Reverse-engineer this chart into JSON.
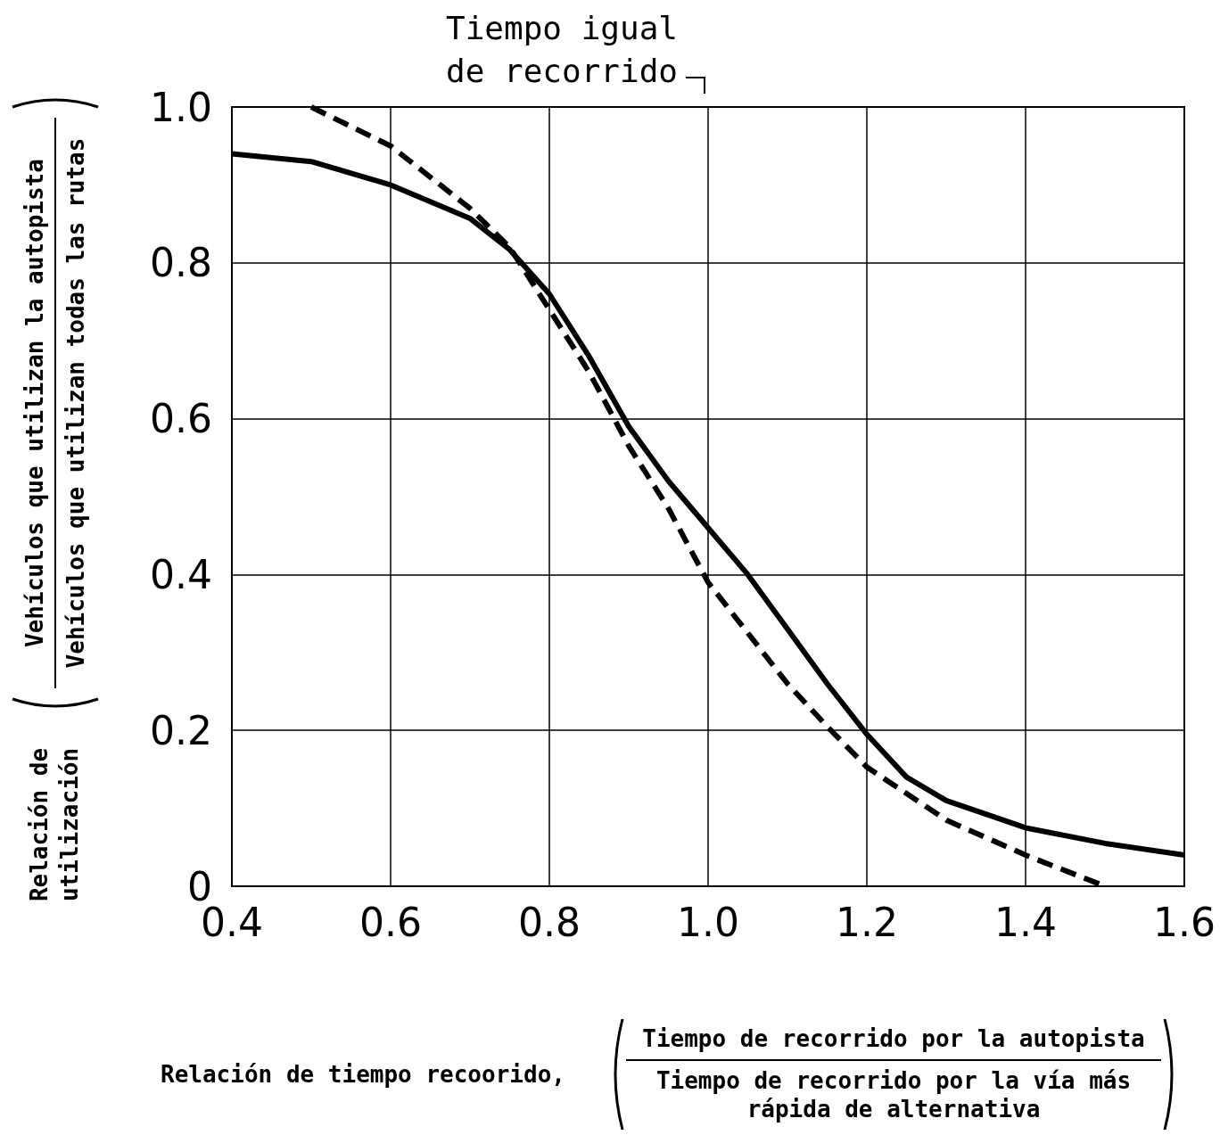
{
  "chart_data": {
    "type": "line",
    "ylabel": "Relación de utilización",
    "annotations": [
      "Tiempo igual de recorrido",
      "Vehículos que utilizan la autopista",
      "Vehículos que utilizan todas las rutas",
      "Relación de tiempo recoorido,",
      "Tiempo de recorrido por la autopista",
      "Tiempo de recorrido por la vía más rápida de alternativa"
    ],
    "series": [
      {
        "color": "#000000",
        "line_style": "solid",
        "x": [
          0.4,
          0.5,
          0.6,
          0.7,
          0.75,
          0.8,
          0.85,
          0.9,
          0.95,
          1.0,
          1.05,
          1.1,
          1.15,
          1.2,
          1.25,
          1.3,
          1.4,
          1.5,
          1.6
        ],
        "values": [
          0.94,
          0.93,
          0.9,
          0.857,
          0.817,
          0.76,
          0.68,
          0.59,
          0.52,
          0.46,
          0.4,
          0.33,
          0.26,
          0.195,
          0.14,
          0.11,
          0.075,
          0.055,
          0.04
        ]
      },
      {
        "color": "#000000",
        "line_style": "dashed",
        "x": [
          0.5,
          0.6,
          0.7,
          0.75,
          0.8,
          0.85,
          0.9,
          0.95,
          1.0,
          1.05,
          1.1,
          1.15,
          1.2,
          1.3,
          1.4,
          1.5
        ],
        "values": [
          1.0,
          0.95,
          0.87,
          0.82,
          0.74,
          0.66,
          0.565,
          0.485,
          0.39,
          0.325,
          0.26,
          0.205,
          0.153,
          0.085,
          0.04,
          0.0
        ]
      }
    ],
    "xlim": [
      0.4,
      1.6
    ],
    "xticks": [
      0.4,
      0.6,
      0.8,
      {
        "value": 1,
        "label": "1.0"
      },
      1.2,
      1.4,
      1.6
    ],
    "ylim": [
      0,
      1
    ],
    "yticks": [
      {
        "value": 0,
        "label": "0"
      },
      0.2,
      0.4,
      0.6,
      0.8,
      {
        "value": 1,
        "label": "1.0"
      }
    ],
    "grid": true,
    "marker": "none"
  }
}
